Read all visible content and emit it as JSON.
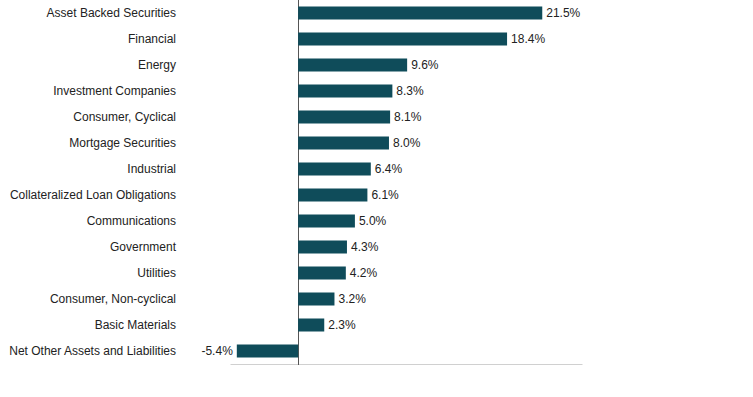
{
  "chart_data": {
    "type": "bar",
    "orientation": "horizontal",
    "categories": [
      "Asset Backed Securities",
      "Financial",
      "Energy",
      "Investment Companies",
      "Consumer, Cyclical",
      "Mortgage Securities",
      "Industrial",
      "Collateralized Loan Obligations",
      "Communications",
      "Government",
      "Utilities",
      "Consumer, Non-cyclical",
      "Basic Materials",
      "Net Other Assets and Liabilities"
    ],
    "values": [
      21.5,
      18.4,
      9.6,
      8.3,
      8.1,
      8.0,
      6.4,
      6.1,
      5.0,
      4.3,
      4.2,
      3.2,
      2.3,
      -5.4
    ],
    "value_labels": [
      "21.5%",
      "18.4%",
      "9.6%",
      "8.3%",
      "8.1%",
      "8.0%",
      "6.4%",
      "6.1%",
      "5.0%",
      "4.3%",
      "4.2%",
      "3.2%",
      "2.3%",
      "-5.4%"
    ],
    "color": "#0f4c5a",
    "xlim": [
      -6,
      25
    ],
    "xticks": [
      0
    ],
    "data_labels": true,
    "tick_labels": false,
    "grid": false
  }
}
